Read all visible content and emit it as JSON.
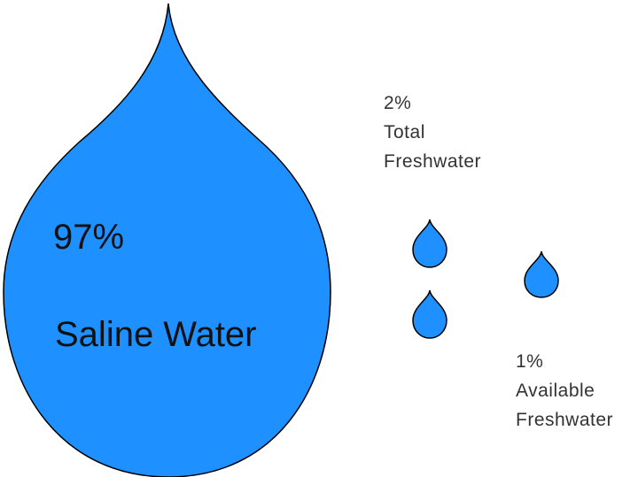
{
  "colors": {
    "drop_fill": "#1e90ff",
    "drop_stroke": "#000000",
    "text": "#111111"
  },
  "saline": {
    "percent": "97%",
    "label": "Saline Water"
  },
  "total_freshwater": {
    "percent": "2%",
    "line1": "Total",
    "line2": "Freshwater"
  },
  "available_freshwater": {
    "percent": "1%",
    "line1": "Available",
    "line2": "Freshwater"
  }
}
